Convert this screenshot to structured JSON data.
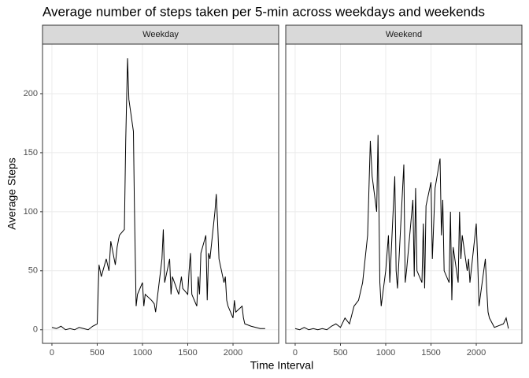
{
  "chart_data": {
    "type": "line",
    "title": "Average number of steps taken per 5-min across weekdays and weekends",
    "x_label": "Time Interval",
    "y_label": "Average Steps",
    "xlim": [
      -104,
      2504
    ],
    "ylim": [
      -11.5,
      242
    ],
    "xticks": [
      0,
      500,
      1000,
      1500,
      2000
    ],
    "yticks": [
      0,
      50,
      100,
      150,
      200
    ],
    "grid": true,
    "series": [
      {
        "name": "Weekday",
        "color": "#000000",
        "x": [
          0,
          50,
          100,
          150,
          200,
          250,
          300,
          350,
          400,
          450,
          500,
          520,
          545,
          600,
          630,
          650,
          700,
          720,
          745,
          800,
          815,
          835,
          850,
          900,
          910,
          915,
          930,
          945,
          1000,
          1015,
          1030,
          1100,
          1130,
          1145,
          1200,
          1215,
          1230,
          1245,
          1300,
          1315,
          1330,
          1400,
          1430,
          1445,
          1500,
          1515,
          1530,
          1545,
          1600,
          1615,
          1630,
          1645,
          1700,
          1715,
          1730,
          1745,
          1800,
          1815,
          1830,
          1845,
          1900,
          1915,
          1930,
          1945,
          2000,
          2015,
          2030,
          2100,
          2115,
          2130,
          2200,
          2300,
          2355
        ],
        "values": [
          2,
          1,
          3,
          0,
          1,
          0,
          2,
          1,
          0,
          3,
          5,
          55,
          45,
          60,
          50,
          75,
          55,
          70,
          80,
          85,
          160,
          230,
          195,
          168,
          110,
          85,
          20,
          30,
          40,
          20,
          30,
          25,
          22,
          15,
          50,
          60,
          85,
          40,
          60,
          30,
          45,
          30,
          45,
          35,
          30,
          50,
          65,
          30,
          20,
          45,
          30,
          65,
          80,
          25,
          65,
          60,
          100,
          115,
          90,
          60,
          40,
          45,
          25,
          20,
          10,
          25,
          15,
          20,
          10,
          5,
          3,
          1,
          1
        ]
      },
      {
        "name": "Weekend",
        "color": "#000000",
        "x": [
          0,
          50,
          100,
          150,
          200,
          250,
          300,
          350,
          400,
          450,
          500,
          550,
          600,
          650,
          700,
          745,
          800,
          830,
          850,
          900,
          915,
          935,
          950,
          1000,
          1030,
          1045,
          1100,
          1115,
          1130,
          1200,
          1215,
          1230,
          1300,
          1315,
          1330,
          1345,
          1400,
          1415,
          1430,
          1445,
          1500,
          1515,
          1545,
          1600,
          1615,
          1630,
          1645,
          1700,
          1715,
          1730,
          1745,
          1800,
          1815,
          1830,
          1845,
          1900,
          1915,
          1930,
          2000,
          2015,
          2030,
          2100,
          2115,
          2130,
          2145,
          2200,
          2300,
          2330,
          2355
        ],
        "values": [
          1,
          0,
          2,
          0,
          1,
          0,
          1,
          0,
          3,
          5,
          2,
          10,
          5,
          20,
          25,
          40,
          80,
          160,
          130,
          100,
          165,
          40,
          20,
          50,
          80,
          40,
          130,
          50,
          35,
          140,
          40,
          50,
          110,
          45,
          120,
          50,
          40,
          90,
          35,
          105,
          125,
          60,
          120,
          145,
          80,
          110,
          50,
          40,
          100,
          25,
          70,
          40,
          100,
          60,
          80,
          50,
          60,
          40,
          90,
          60,
          20,
          60,
          35,
          15,
          10,
          2,
          5,
          10,
          1
        ]
      }
    ]
  }
}
